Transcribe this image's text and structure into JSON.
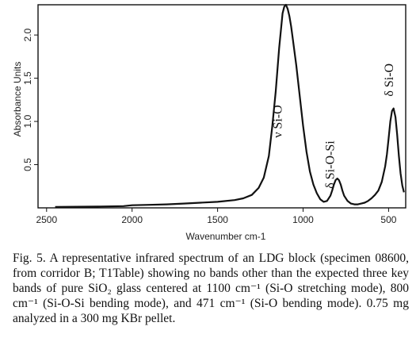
{
  "chart_data": {
    "type": "line",
    "xlabel": "Wavenumber cm-1",
    "ylabel": "Absorbance Units",
    "xlim": [
      2550,
      400
    ],
    "ylim": [
      0,
      2.35
    ],
    "x_reversed": true,
    "xticks": [
      "2500",
      "2000",
      "1500",
      "1000",
      "500"
    ],
    "yticks": [
      "0.5",
      "1.0",
      "1.5",
      "2.0"
    ],
    "grid": false,
    "line_color": "#111111",
    "series": [
      {
        "x": [
          2450,
          2200,
          2050,
          2000,
          1900,
          1800,
          1700,
          1600,
          1500,
          1400,
          1350,
          1300,
          1260,
          1230,
          1200,
          1180,
          1160,
          1140,
          1120,
          1110,
          1100,
          1090,
          1080,
          1070,
          1060,
          1040,
          1020,
          1000,
          980,
          960,
          940,
          920,
          900,
          880,
          860,
          840,
          830,
          820,
          810,
          800,
          790,
          780,
          770,
          760,
          740,
          720,
          700,
          680,
          660,
          640,
          620,
          600,
          580,
          560,
          540,
          520,
          510,
          500,
          490,
          480,
          471,
          460,
          450,
          440,
          430,
          420,
          410
        ],
        "y": [
          0.01,
          0.015,
          0.02,
          0.03,
          0.035,
          0.04,
          0.05,
          0.06,
          0.07,
          0.09,
          0.11,
          0.15,
          0.23,
          0.35,
          0.6,
          0.95,
          1.35,
          1.85,
          2.25,
          2.33,
          2.35,
          2.3,
          2.22,
          2.1,
          1.95,
          1.65,
          1.3,
          0.95,
          0.65,
          0.42,
          0.27,
          0.17,
          0.1,
          0.07,
          0.08,
          0.14,
          0.2,
          0.27,
          0.32,
          0.34,
          0.32,
          0.27,
          0.2,
          0.14,
          0.08,
          0.05,
          0.04,
          0.04,
          0.05,
          0.06,
          0.08,
          0.11,
          0.15,
          0.2,
          0.3,
          0.48,
          0.62,
          0.8,
          1.0,
          1.12,
          1.15,
          1.05,
          0.85,
          0.6,
          0.4,
          0.26,
          0.18
        ]
      }
    ],
    "annotations": [
      {
        "text": "ν Si-O",
        "x": 1125,
        "y": 1.0
      },
      {
        "text": "δ Si-O-Si",
        "x": 820,
        "y": 0.5
      },
      {
        "text": "δ Si-O",
        "x": 475,
        "y": 1.48
      }
    ]
  },
  "caption": {
    "text": "Fig. 5. A representative infrared spectrum of an LDG block (specimen 08600, from corridor B; T1Table) showing no bands other than the expected three key bands of pure SiO₂ glass centered at 1100 cm⁻¹ (Si-O stretching mode), 800 cm⁻¹ (Si-O-Si bending mode), and 471 cm⁻¹ (Si-O bending mode). 0.75 mg analyzed in a 300 mg KBr pellet."
  }
}
